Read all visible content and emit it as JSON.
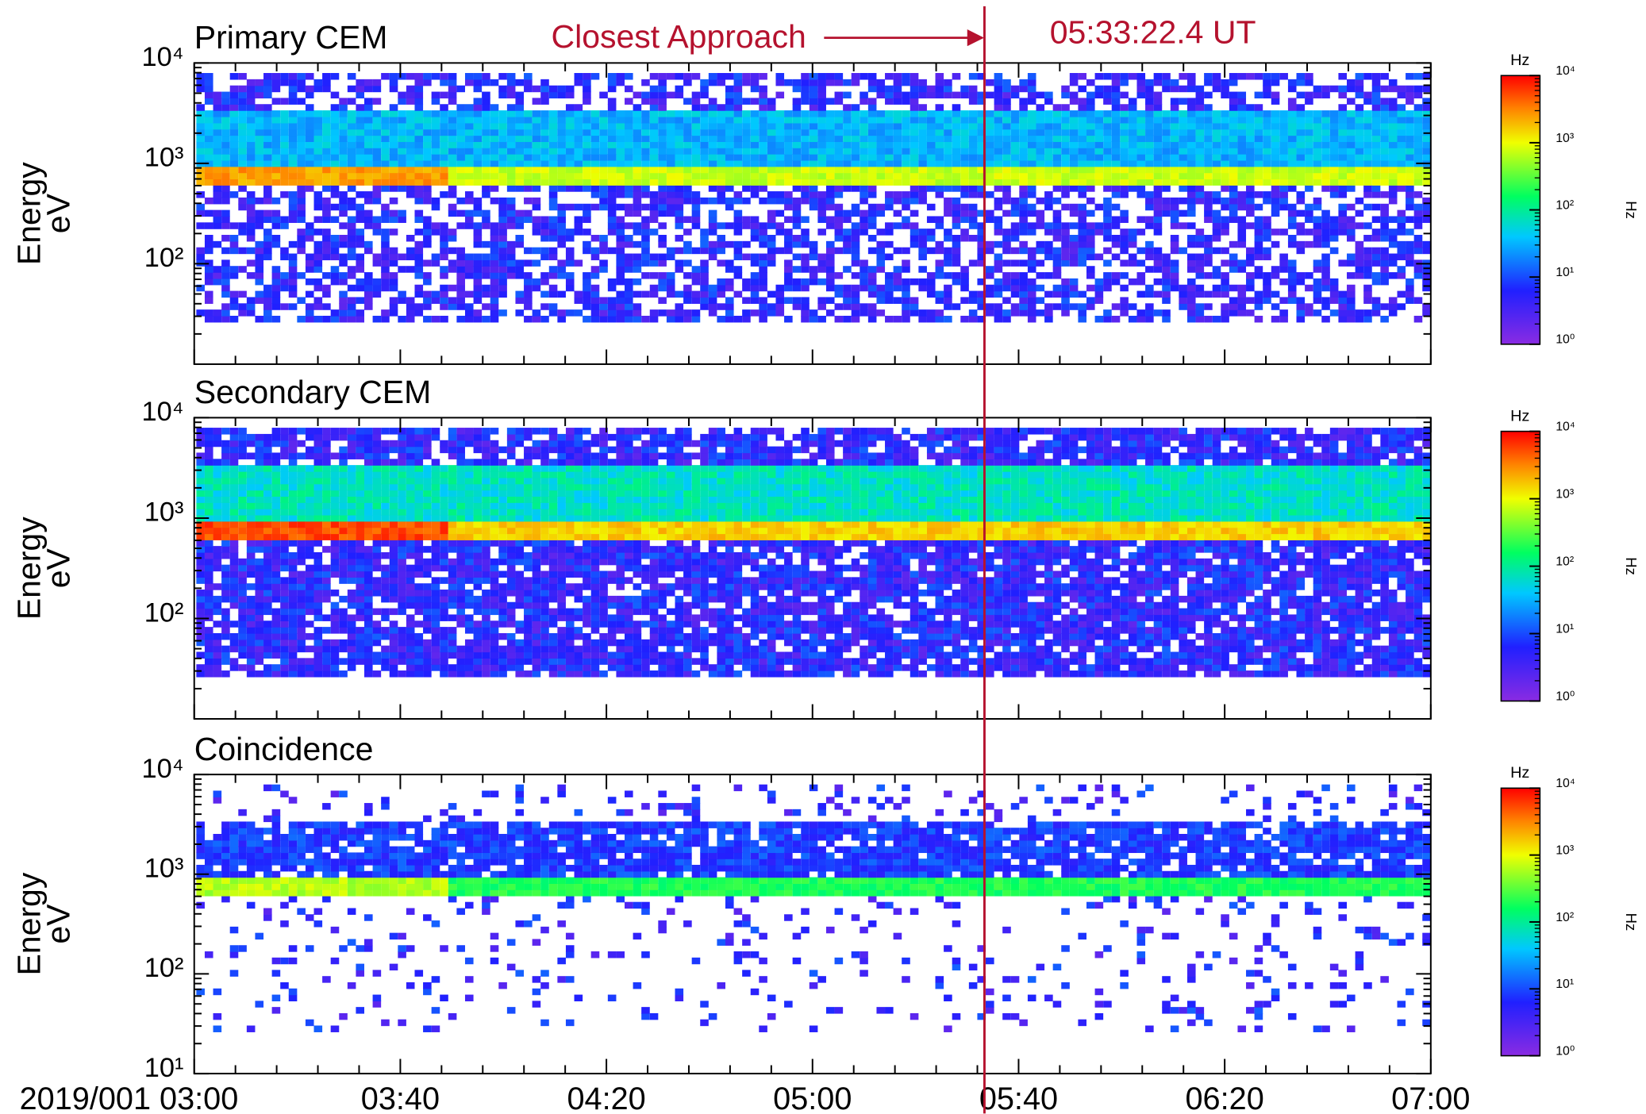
{
  "chart_data": [
    {
      "type": "spectrogram",
      "title": "Primary CEM",
      "ylabel": "Energy",
      "yunit": "eV",
      "xlim": [
        "03:00",
        "07:00"
      ],
      "ylim": [
        10,
        10000
      ],
      "log_y": true,
      "yticks": [
        {
          "value": 100,
          "label": "10²"
        },
        {
          "value": 1000,
          "label": "10³"
        },
        {
          "value": 10000,
          "label": "10⁴"
        }
      ],
      "colorbar": {
        "label": "Hz",
        "lim": [
          1,
          10000
        ],
        "ticks": [
          {
            "value": 1,
            "label": "10⁰"
          },
          {
            "value": 10,
            "label": "10¹"
          },
          {
            "value": 100,
            "label": "10²"
          },
          {
            "value": 1000,
            "label": "10³"
          },
          {
            "value": 10000,
            "label": "10⁴"
          }
        ]
      },
      "annotations": [
        "Closest Approach",
        "05:33:22.4 UT"
      ],
      "annotation_color": "#b5122e"
    },
    {
      "type": "spectrogram",
      "title": "Secondary CEM",
      "ylabel": "Energy",
      "yunit": "eV",
      "xlim": [
        "03:00",
        "07:00"
      ],
      "ylim": [
        10,
        10000
      ],
      "log_y": true,
      "yticks": [
        {
          "value": 100,
          "label": "10²"
        },
        {
          "value": 1000,
          "label": "10³"
        },
        {
          "value": 10000,
          "label": "10⁴"
        }
      ],
      "colorbar": {
        "label": "Hz",
        "lim": [
          1,
          10000
        ],
        "ticks": [
          {
            "value": 1,
            "label": "10⁰"
          },
          {
            "value": 10,
            "label": "10¹"
          },
          {
            "value": 100,
            "label": "10²"
          },
          {
            "value": 1000,
            "label": "10³"
          },
          {
            "value": 10000,
            "label": "10⁴"
          }
        ]
      }
    },
    {
      "type": "spectrogram",
      "title": "Coincidence",
      "ylabel": "Energy",
      "yunit": "eV",
      "xlim": [
        "03:00",
        "07:00"
      ],
      "ylim": [
        10,
        10000
      ],
      "log_y": true,
      "xticks": [
        "2019/001 03:00",
        "03:40",
        "04:20",
        "05:00",
        "05:40",
        "06:20",
        "07:00"
      ],
      "yticks": [
        {
          "value": 10,
          "label": "10¹"
        },
        {
          "value": 100,
          "label": "10²"
        },
        {
          "value": 1000,
          "label": "10³"
        },
        {
          "value": 10000,
          "label": "10⁴"
        }
      ],
      "colorbar": {
        "label": "Hz",
        "lim": [
          1,
          10000
        ],
        "ticks": [
          {
            "value": 1,
            "label": "10⁰"
          },
          {
            "value": 10,
            "label": "10¹"
          },
          {
            "value": 100,
            "label": "10²"
          },
          {
            "value": 1000,
            "label": "10³"
          },
          {
            "value": 10000,
            "label": "10⁴"
          }
        ]
      }
    }
  ]
}
